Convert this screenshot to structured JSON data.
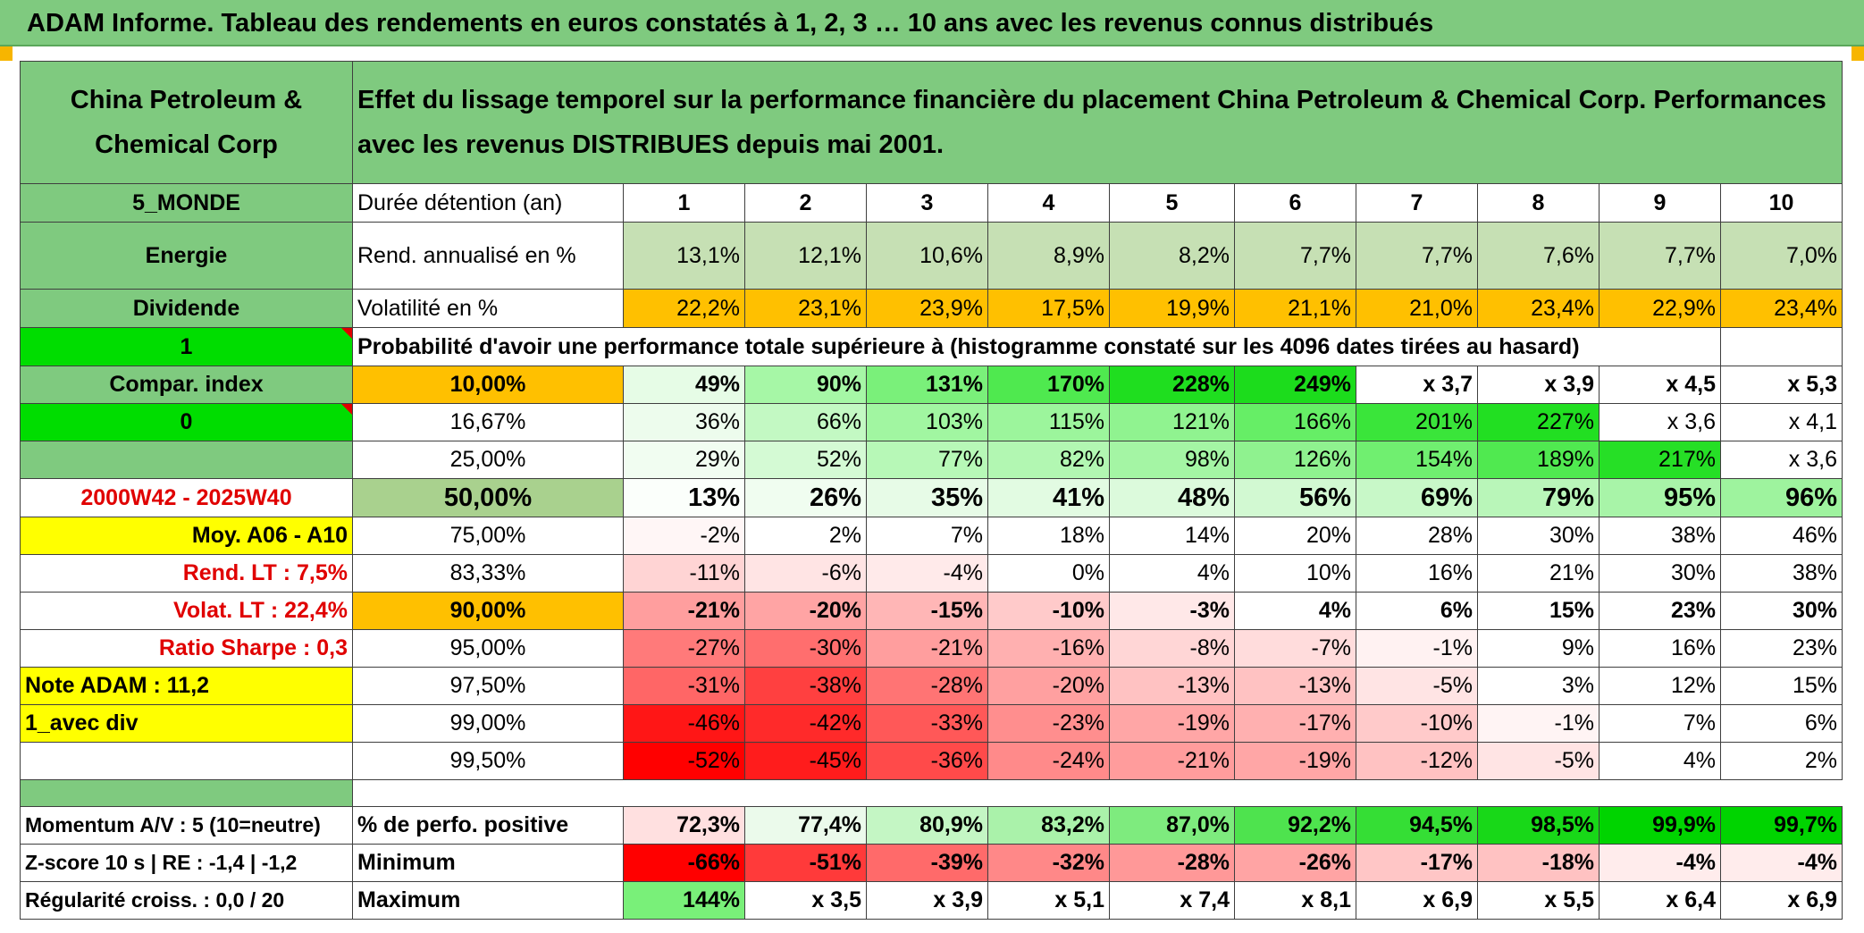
{
  "banner": "ADAM Informe. Tableau des rendements en euros constatés à 1, 2, 3 … 10 ans avec les revenus connus distribués",
  "left": {
    "fund_name": "China Petroleum & Chemical Corp",
    "zone": "5_MONDE",
    "sector": "Energie",
    "type": "Dividende",
    "indicator_1": "1",
    "compar_index": "Compar. index",
    "indicator_0": "0",
    "period": "2000W42 - 2025W40",
    "moy": "Moy. A06 - A10",
    "rend_lt": "Rend. LT :   7,5%",
    "volat_lt": "Volat. LT :   22,4%",
    "sharpe": "Ratio Sharpe :   0,3",
    "note_adam": "Note ADAM : 11,2",
    "avec_div": "1_avec div",
    "momentum": "Momentum A/V : 5 (10=neutre)",
    "zscore": "Z-score 10 s | RE : -1,4 | -1,2",
    "regularite": "Régularité croiss. : 0,0 / 20"
  },
  "title": "Effet du lissage temporel sur la performance financière du placement China Petroleum & Chemical Corp. Performances avec les revenus DISTRIBUES depuis mai 2001.",
  "header_label": "Durée détention (an)",
  "years": [
    "1",
    "2",
    "3",
    "4",
    "5",
    "6",
    "7",
    "8",
    "9",
    "10"
  ],
  "rend": {
    "label": "Rend. annualisé en %",
    "values": [
      "13,1%",
      "12,1%",
      "10,6%",
      "8,9%",
      "8,2%",
      "7,7%",
      "7,7%",
      "7,6%",
      "7,7%",
      "7,0%"
    ]
  },
  "vol": {
    "label": "Volatilité en %",
    "values": [
      "22,2%",
      "23,1%",
      "23,9%",
      "17,5%",
      "19,9%",
      "21,1%",
      "21,0%",
      "23,4%",
      "22,9%",
      "23,4%"
    ]
  },
  "prob_title": "Probabilité d'avoir une performance totale supérieure à (histogramme constaté sur les 4096 dates tirées au hasard)",
  "quantiles": [
    {
      "label": "10,00%",
      "values": [
        "49%",
        "90%",
        "131%",
        "170%",
        "228%",
        "249%",
        "x 3,7",
        "x 3,9",
        "x 4,5",
        "x 5,3"
      ]
    },
    {
      "label": "16,67%",
      "values": [
        "36%",
        "66%",
        "103%",
        "115%",
        "121%",
        "166%",
        "201%",
        "227%",
        "x 3,6",
        "x 4,1"
      ]
    },
    {
      "label": "25,00%",
      "values": [
        "29%",
        "52%",
        "77%",
        "82%",
        "98%",
        "126%",
        "154%",
        "189%",
        "217%",
        "x 3,6"
      ]
    },
    {
      "label": "50,00%",
      "values": [
        "13%",
        "26%",
        "35%",
        "41%",
        "48%",
        "56%",
        "69%",
        "79%",
        "95%",
        "96%"
      ]
    },
    {
      "label": "75,00%",
      "values": [
        "-2%",
        "2%",
        "7%",
        "18%",
        "14%",
        "20%",
        "28%",
        "30%",
        "38%",
        "46%"
      ]
    },
    {
      "label": "83,33%",
      "values": [
        "-11%",
        "-6%",
        "-4%",
        "0%",
        "4%",
        "10%",
        "16%",
        "21%",
        "30%",
        "38%"
      ]
    },
    {
      "label": "90,00%",
      "values": [
        "-21%",
        "-20%",
        "-15%",
        "-10%",
        "-3%",
        "4%",
        "6%",
        "15%",
        "23%",
        "30%"
      ]
    },
    {
      "label": "95,00%",
      "values": [
        "-27%",
        "-30%",
        "-21%",
        "-16%",
        "-8%",
        "-7%",
        "-1%",
        "9%",
        "16%",
        "23%"
      ]
    },
    {
      "label": "97,50%",
      "values": [
        "-31%",
        "-38%",
        "-28%",
        "-20%",
        "-13%",
        "-13%",
        "-5%",
        "3%",
        "12%",
        "15%"
      ]
    },
    {
      "label": "99,00%",
      "values": [
        "-46%",
        "-42%",
        "-33%",
        "-23%",
        "-19%",
        "-17%",
        "-10%",
        "-1%",
        "7%",
        "6%"
      ]
    },
    {
      "label": "99,50%",
      "values": [
        "-52%",
        "-45%",
        "-36%",
        "-24%",
        "-21%",
        "-19%",
        "-12%",
        "-5%",
        "4%",
        "2%"
      ]
    }
  ],
  "perf_pos": {
    "label": "% de perfo. positive",
    "values": [
      "72,3%",
      "77,4%",
      "80,9%",
      "83,2%",
      "87,0%",
      "92,2%",
      "94,5%",
      "98,5%",
      "99,9%",
      "99,7%"
    ]
  },
  "minimum": {
    "label": "Minimum",
    "values": [
      "-66%",
      "-51%",
      "-39%",
      "-32%",
      "-28%",
      "-26%",
      "-17%",
      "-18%",
      "-4%",
      "-4%"
    ]
  },
  "maximum": {
    "label": "Maximum",
    "values": [
      "144%",
      "x 3,5",
      "x 3,9",
      "x 5,1",
      "x 7,4",
      "x 8,1",
      "x 6,9",
      "x 5,5",
      "x 6,4",
      "x 6,9"
    ]
  },
  "colors": {
    "header_green": "#7fca7f",
    "lime": "#00dd00",
    "yellow": "#ffff00",
    "orange": "#ffc000",
    "red_text": "#e00000"
  },
  "cell_colors": {
    "rend": [
      "#c6e0b4",
      "#c6e0b4",
      "#c6e0b4",
      "#c6e0b4",
      "#c6e0b4",
      "#c6e0b4",
      "#c6e0b4",
      "#c6e0b4",
      "#c6e0b4",
      "#c6e0b4"
    ],
    "vol": [
      "#ffc000",
      "#ffc000",
      "#ffc000",
      "#ffc000",
      "#ffc000",
      "#ffc000",
      "#ffc000",
      "#ffc000",
      "#ffc000",
      "#ffc000"
    ],
    "quantiles": [
      [
        "#e6fce6",
        "#a6f7a6",
        "#7af07a",
        "#4fe94f",
        "#1fde1f",
        "#1cdc1c",
        "#ffffff",
        "#ffffff",
        "#ffffff",
        "#ffffff"
      ],
      [
        "#edfced",
        "#c3f9c3",
        "#a1f6a1",
        "#9cf59c",
        "#90f390",
        "#66ee66",
        "#3ae53a",
        "#22df22",
        "#ffffff",
        "#ffffff"
      ],
      [
        "#f1fdf1",
        "#d4fad4",
        "#b7f8b7",
        "#b2f7b2",
        "#a4f5a4",
        "#8ff28f",
        "#70ef70",
        "#50e950",
        "#26df26",
        "#ffffff"
      ],
      [
        "#fbfffb",
        "#f0fdf0",
        "#e7fbe7",
        "#e2fbe2",
        "#dcfadc",
        "#d2f9d2",
        "#c8f8c8",
        "#b9f6b9",
        "#a8f4a8",
        "#9ef39e"
      ],
      [
        "#fff6f6",
        "#ffffff",
        "#ffffff",
        "#ffffff",
        "#ffffff",
        "#ffffff",
        "#ffffff",
        "#ffffff",
        "#ffffff",
        "#ffffff"
      ],
      [
        "#ffd4d4",
        "#ffe4e4",
        "#ffeaea",
        "#ffffff",
        "#ffffff",
        "#ffffff",
        "#ffffff",
        "#ffffff",
        "#ffffff",
        "#ffffff"
      ],
      [
        "#ff9e9e",
        "#ffa4a4",
        "#ffb6b6",
        "#ffcaca",
        "#ffe8e8",
        "#ffffff",
        "#ffffff",
        "#ffffff",
        "#ffffff",
        "#ffffff"
      ],
      [
        "#ff7a7a",
        "#ff6e6e",
        "#ff9e9e",
        "#ffb0b0",
        "#ffd6d6",
        "#ffdcdc",
        "#fff2f2",
        "#ffffff",
        "#ffffff",
        "#ffffff"
      ],
      [
        "#ff6666",
        "#ff4040",
        "#ff7474",
        "#ffa0a0",
        "#ffc2c2",
        "#ffc2c2",
        "#ffe4e4",
        "#ffffff",
        "#ffffff",
        "#ffffff"
      ],
      [
        "#ff1616",
        "#ff2a2a",
        "#ff5858",
        "#ff8e8e",
        "#ffa6a6",
        "#ffb0b0",
        "#ffcaca",
        "#fff4f4",
        "#ffffff",
        "#ffffff"
      ],
      [
        "#ff0000",
        "#ff1c1c",
        "#ff4a4a",
        "#ff8a8a",
        "#ff9c9c",
        "#ffa6a6",
        "#ffc2c2",
        "#ffe4e4",
        "#ffffff",
        "#ffffff"
      ]
    ],
    "perf_pos": [
      "#ffe0e0",
      "#ebfaeb",
      "#c4f6c4",
      "#aaf2aa",
      "#7eeb7e",
      "#4ee34e",
      "#35de35",
      "#18d818",
      "#00d400",
      "#00d400"
    ],
    "minimum": [
      "#ff0000",
      "#ff3a3a",
      "#ff6a6a",
      "#ff8888",
      "#ff9898",
      "#ffa4a4",
      "#ffc6c6",
      "#ffc2c2",
      "#ffecec",
      "#ffecec"
    ],
    "maximum": [
      "#79f079",
      "#ffffff",
      "#ffffff",
      "#ffffff",
      "#ffffff",
      "#ffffff",
      "#ffffff",
      "#ffffff",
      "#ffffff",
      "#ffffff"
    ]
  }
}
